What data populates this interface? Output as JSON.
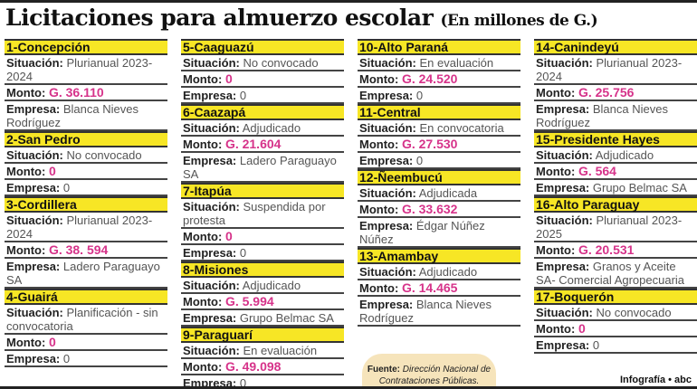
{
  "title": "Licitaciones para almuerzo escolar",
  "subtitle": "(En millones de G.)",
  "labels": {
    "situacion": "Situación:",
    "monto": "Monto:",
    "empresa": "Empresa:"
  },
  "colors": {
    "header": "#f7e625",
    "monto": "#d6338a",
    "fuente_bg": "#f6e4bb"
  },
  "columns": [
    [
      {
        "name": "1-Concepción",
        "situacion": "Plurianual 2023-2024",
        "monto": "G. 36.110",
        "empresa": "Blanca Nieves Rodríguez"
      },
      {
        "name": "2-San Pedro",
        "situacion": "No convocado",
        "monto": "0",
        "empresa": "0"
      },
      {
        "name": "3-Cordillera",
        "situacion": "Plurianual 2023-2024",
        "monto": "G. 38. 594",
        "empresa": "Ladero Paraguayo SA"
      },
      {
        "name": "4-Guairá",
        "situacion": "Planificación - sin convocatoria",
        "monto": "0",
        "empresa": "0"
      }
    ],
    [
      {
        "name": "5-Caaguazú",
        "situacion": "No convocado",
        "monto": "0",
        "empresa": "0"
      },
      {
        "name": "6-Caazapá",
        "situacion": "Adjudicado",
        "monto": "G. 21.604",
        "empresa": "Ladero Paraguayo SA"
      },
      {
        "name": "7-Itapúa",
        "situacion": "Suspendida por protesta",
        "monto": "0",
        "empresa": "0"
      },
      {
        "name": "8-Misiones",
        "situacion": "Adjudicado",
        "monto": "G. 5.994",
        "empresa": "Grupo Belmac SA"
      },
      {
        "name": "9-Paraguarí",
        "situacion": "En evaluación",
        "monto": "G. 49.098",
        "empresa": "0"
      }
    ],
    [
      {
        "name": "10-Alto Paraná",
        "situacion": "En evaluación",
        "monto": "G. 24.520",
        "empresa": "0"
      },
      {
        "name": "11-Central",
        "situacion": "En convocatoria",
        "monto": "G. 27.530",
        "empresa": "0"
      },
      {
        "name": "12-Ñeembucú",
        "situacion": "Adjudicada",
        "monto": "G. 33.632",
        "empresa": "Édgar Núñez Núñez"
      },
      {
        "name": "13-Amambay",
        "situacion": "Adjudicado",
        "monto": "G. 14.465",
        "empresa": "Blanca Nieves Rodríguez"
      }
    ],
    [
      {
        "name": "14-Canindeyú",
        "situacion": "Plurianual 2023-2024",
        "monto": "G. 25.756",
        "empresa": "Blanca Nieves Rodríguez"
      },
      {
        "name": "15-Presidente Hayes",
        "situacion": "Adjudicado",
        "monto": "G. 564",
        "empresa": "Grupo Belmac SA"
      },
      {
        "name": "16-Alto Paraguay",
        "situacion": "Plurianual 2023- 2025",
        "monto": "G. 20.531",
        "empresa": "Granos y Aceite SA- Comercial Agropecuaria"
      },
      {
        "name": "17-Boquerón",
        "situacion": "No convocado",
        "monto": "0",
        "empresa": "0"
      }
    ]
  ],
  "fuente": {
    "label": "Fuente:",
    "text": "Dirección Nacional de Contrataciones Públicas."
  },
  "credit": "Infografía • abc"
}
